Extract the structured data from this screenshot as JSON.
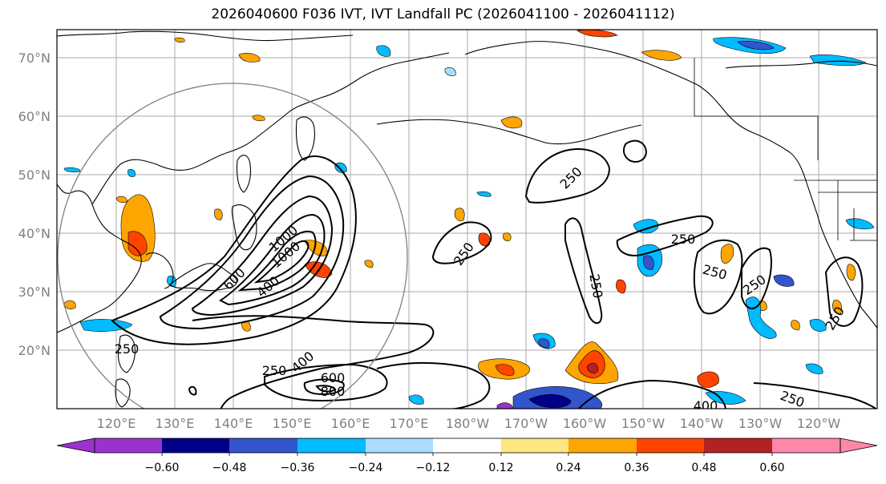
{
  "title": "2026040600 F036 IVT, IVT Landfall PC (2026041100 - 2026041112)",
  "map": {
    "lat_labels": [
      "70°N",
      "60°N",
      "50°N",
      "40°N",
      "30°N",
      "20°N"
    ],
    "lon_labels": [
      "120°E",
      "130°E",
      "140°E",
      "150°E",
      "160°E",
      "170°E",
      "180°W",
      "170°W",
      "160°W",
      "150°W",
      "140°W",
      "130°W",
      "120°W"
    ],
    "contour_labels": [
      "250",
      "250",
      "250",
      "250",
      "250",
      "250",
      "250",
      "400",
      "400",
      "400",
      "600",
      "600",
      "800",
      "1000",
      "1000",
      "250",
      "250"
    ]
  },
  "colorbar": {
    "colors": [
      "#9933cc",
      "#000088",
      "#3355cc",
      "#00bbff",
      "#aaddff",
      "#ffffff",
      "#ffe680",
      "#ffa500",
      "#ff4400",
      "#b22222",
      "#ff88aa"
    ],
    "ticks": [
      "−0.60",
      "−0.48",
      "−0.36",
      "−0.24",
      "−0.12",
      "0.12",
      "0.24",
      "0.36",
      "0.48",
      "0.60"
    ]
  },
  "colors": {
    "coast": "#000000",
    "grid": "#aaaaaa",
    "circle": "#808080",
    "label": "#808080"
  }
}
